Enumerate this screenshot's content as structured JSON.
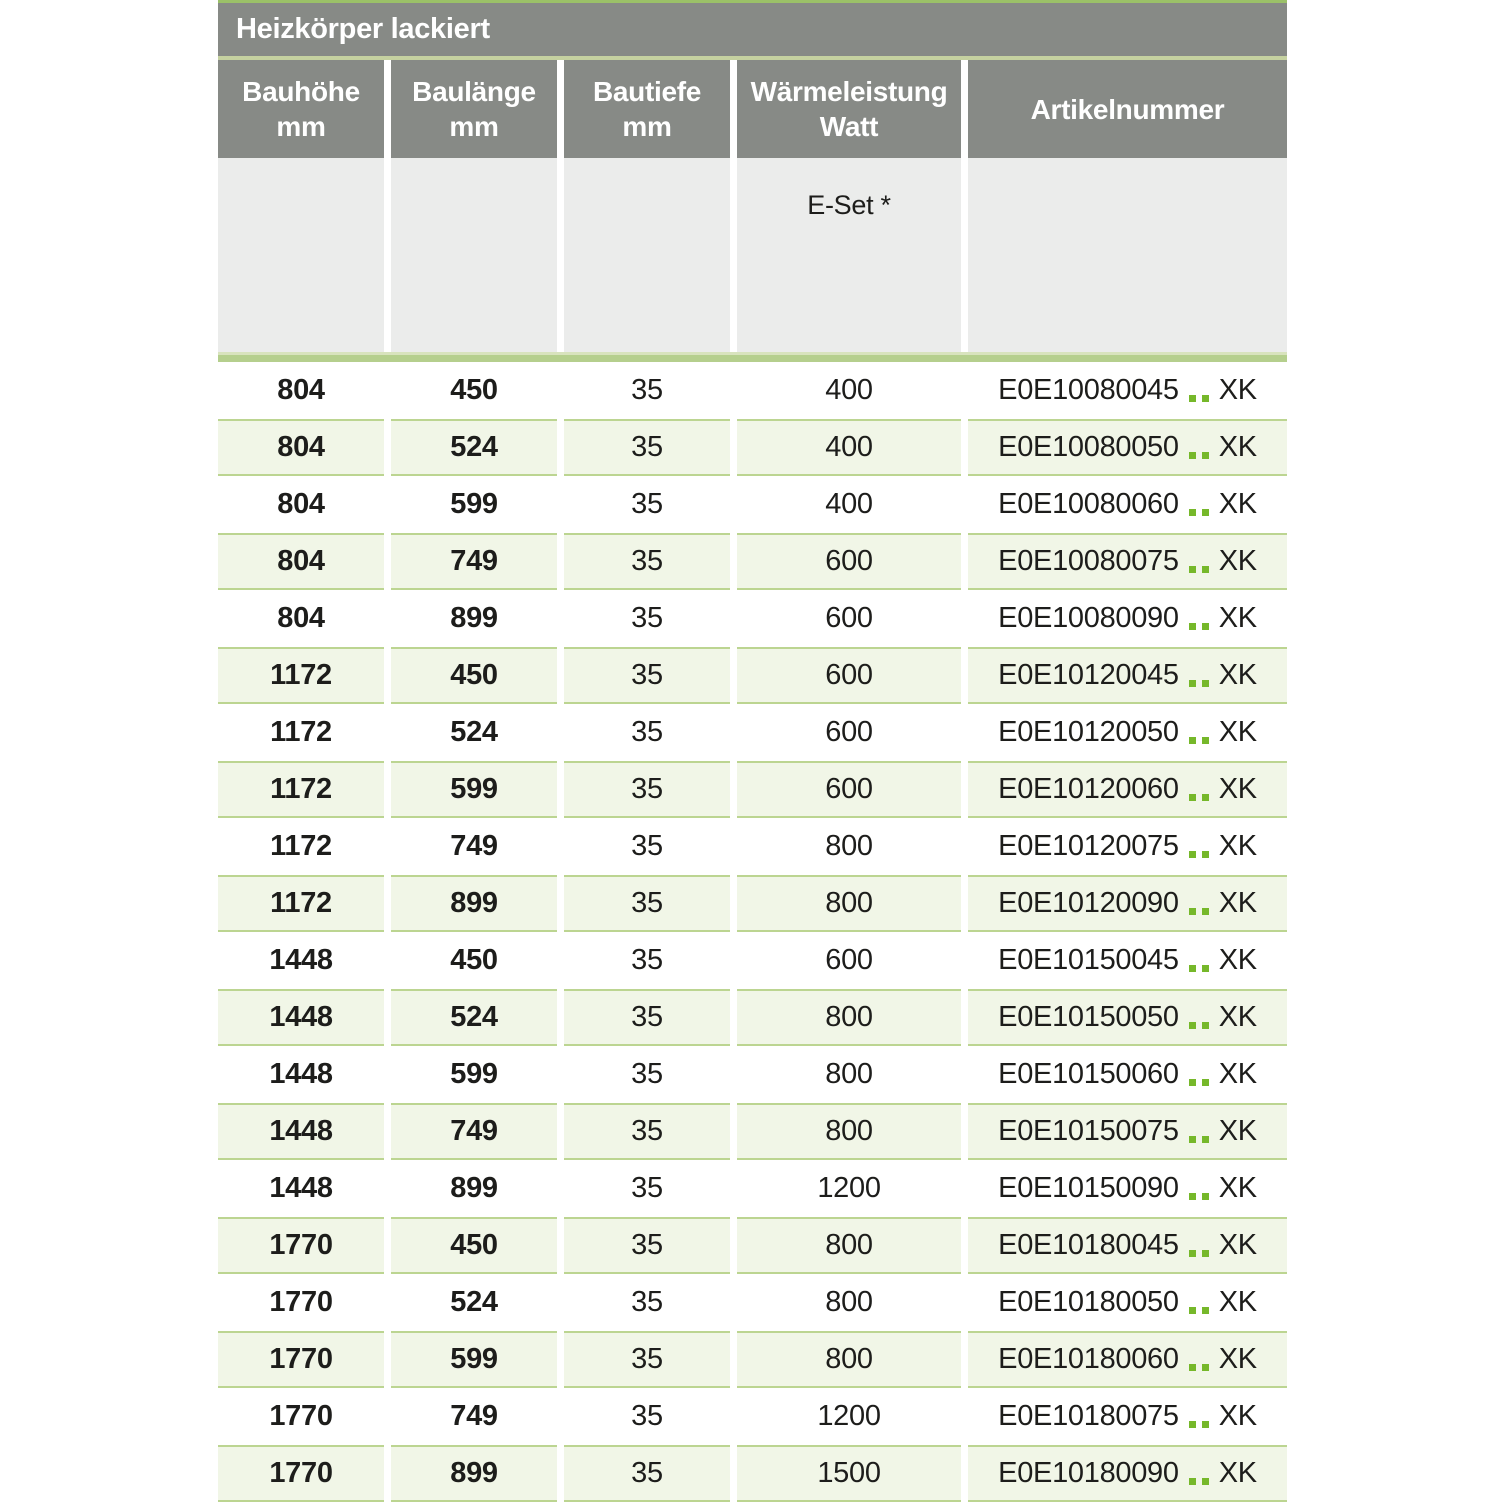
{
  "table": {
    "title": "Heizkörper lackiert",
    "columns": [
      {
        "label": "Bauhöhe",
        "unit": "mm"
      },
      {
        "label": "Baulänge",
        "unit": "mm"
      },
      {
        "label": "Bautiefe",
        "unit": "mm"
      },
      {
        "label": "Wärmeleistung",
        "unit": "Watt"
      },
      {
        "label": "Artikelnummer",
        "unit": ""
      }
    ],
    "subheader": {
      "eset_label": "E-Set *"
    },
    "rows": [
      {
        "bauhoehe": "804",
        "baulaenge": "450",
        "bautiefe": "35",
        "watt": "400",
        "artikel": "E0E10080045",
        "suffix": "XK"
      },
      {
        "bauhoehe": "804",
        "baulaenge": "524",
        "bautiefe": "35",
        "watt": "400",
        "artikel": "E0E10080050",
        "suffix": "XK"
      },
      {
        "bauhoehe": "804",
        "baulaenge": "599",
        "bautiefe": "35",
        "watt": "400",
        "artikel": "E0E10080060",
        "suffix": "XK"
      },
      {
        "bauhoehe": "804",
        "baulaenge": "749",
        "bautiefe": "35",
        "watt": "600",
        "artikel": "E0E10080075",
        "suffix": "XK"
      },
      {
        "bauhoehe": "804",
        "baulaenge": "899",
        "bautiefe": "35",
        "watt": "600",
        "artikel": "E0E10080090",
        "suffix": "XK"
      },
      {
        "bauhoehe": "1172",
        "baulaenge": "450",
        "bautiefe": "35",
        "watt": "600",
        "artikel": "E0E10120045",
        "suffix": "XK"
      },
      {
        "bauhoehe": "1172",
        "baulaenge": "524",
        "bautiefe": "35",
        "watt": "600",
        "artikel": "E0E10120050",
        "suffix": "XK"
      },
      {
        "bauhoehe": "1172",
        "baulaenge": "599",
        "bautiefe": "35",
        "watt": "600",
        "artikel": "E0E10120060",
        "suffix": "XK"
      },
      {
        "bauhoehe": "1172",
        "baulaenge": "749",
        "bautiefe": "35",
        "watt": "800",
        "artikel": "E0E10120075",
        "suffix": "XK"
      },
      {
        "bauhoehe": "1172",
        "baulaenge": "899",
        "bautiefe": "35",
        "watt": "800",
        "artikel": "E0E10120090",
        "suffix": "XK"
      },
      {
        "bauhoehe": "1448",
        "baulaenge": "450",
        "bautiefe": "35",
        "watt": "600",
        "artikel": "E0E10150045",
        "suffix": "XK"
      },
      {
        "bauhoehe": "1448",
        "baulaenge": "524",
        "bautiefe": "35",
        "watt": "800",
        "artikel": "E0E10150050",
        "suffix": "XK"
      },
      {
        "bauhoehe": "1448",
        "baulaenge": "599",
        "bautiefe": "35",
        "watt": "800",
        "artikel": "E0E10150060",
        "suffix": "XK"
      },
      {
        "bauhoehe": "1448",
        "baulaenge": "749",
        "bautiefe": "35",
        "watt": "800",
        "artikel": "E0E10150075",
        "suffix": "XK"
      },
      {
        "bauhoehe": "1448",
        "baulaenge": "899",
        "bautiefe": "35",
        "watt": "1200",
        "artikel": "E0E10150090",
        "suffix": "XK"
      },
      {
        "bauhoehe": "1770",
        "baulaenge": "450",
        "bautiefe": "35",
        "watt": "800",
        "artikel": "E0E10180045",
        "suffix": "XK"
      },
      {
        "bauhoehe": "1770",
        "baulaenge": "524",
        "bautiefe": "35",
        "watt": "800",
        "artikel": "E0E10180050",
        "suffix": "XK"
      },
      {
        "bauhoehe": "1770",
        "baulaenge": "599",
        "bautiefe": "35",
        "watt": "800",
        "artikel": "E0E10180060",
        "suffix": "XK"
      },
      {
        "bauhoehe": "1770",
        "baulaenge": "749",
        "bautiefe": "35",
        "watt": "1200",
        "artikel": "E0E10180075",
        "suffix": "XK"
      },
      {
        "bauhoehe": "1770",
        "baulaenge": "899",
        "bautiefe": "35",
        "watt": "1500",
        "artikel": "E0E10180090",
        "suffix": "XK"
      }
    ]
  },
  "colors": {
    "header_gray": "#878a86",
    "subheader_gray": "#ebeceb",
    "row_green_bg": "#f1f6e7",
    "row_green_border": "#bcd591",
    "bar_green": "#b5cf8d",
    "accent_green": "#76b82a",
    "top_line_green": "#9bc168"
  }
}
